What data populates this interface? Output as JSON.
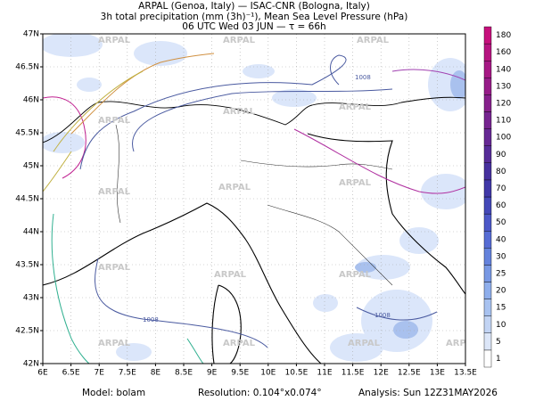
{
  "header": {
    "line1": "ARPAL (Genoa, Italy)  —  ISAC-CNR (Bologna, Italy)",
    "line2": "3h total precipitation (mm (3h)⁻¹), Mean Sea Level Pressure (hPa)",
    "line3": "06 UTC Wed 03 JUN  —  τ = 66h"
  },
  "map": {
    "lon_labels": [
      "6E",
      "6.5E",
      "7E",
      "7.5E",
      "8E",
      "8.5E",
      "9E",
      "9.5E",
      "10E",
      "10.5E",
      "11E",
      "11.5E",
      "12E",
      "12.5E",
      "13E",
      "13.5E"
    ],
    "lat_labels": [
      "42N",
      "42.5N",
      "43N",
      "43.5N",
      "44N",
      "44.5N",
      "45N",
      "45.5N",
      "46N",
      "46.5N",
      "47N"
    ],
    "watermark": "ARPAL",
    "isobar_label": "1008"
  },
  "colorbar": {
    "labels": [
      1,
      5,
      10,
      15,
      20,
      25,
      30,
      40,
      50,
      60,
      70,
      80,
      90,
      100,
      110,
      120,
      130,
      140,
      160,
      180
    ],
    "colors": [
      "#ffffff",
      "#dce6f8",
      "#c2d4f4",
      "#a8c2f0",
      "#8eaeec",
      "#7898e4",
      "#6482dc",
      "#566cd4",
      "#4c58c8",
      "#4448b8",
      "#4038a8",
      "#46309e",
      "#562c98",
      "#662894",
      "#762490",
      "#86208c",
      "#961c88",
      "#a61884",
      "#b61480",
      "#c6107c"
    ]
  },
  "footer": {
    "model": "Model: bolam",
    "resolution": "Resolution: 0.104°x0.074°",
    "analysis": "Analysis: Sun 12Z31MAY2026"
  }
}
